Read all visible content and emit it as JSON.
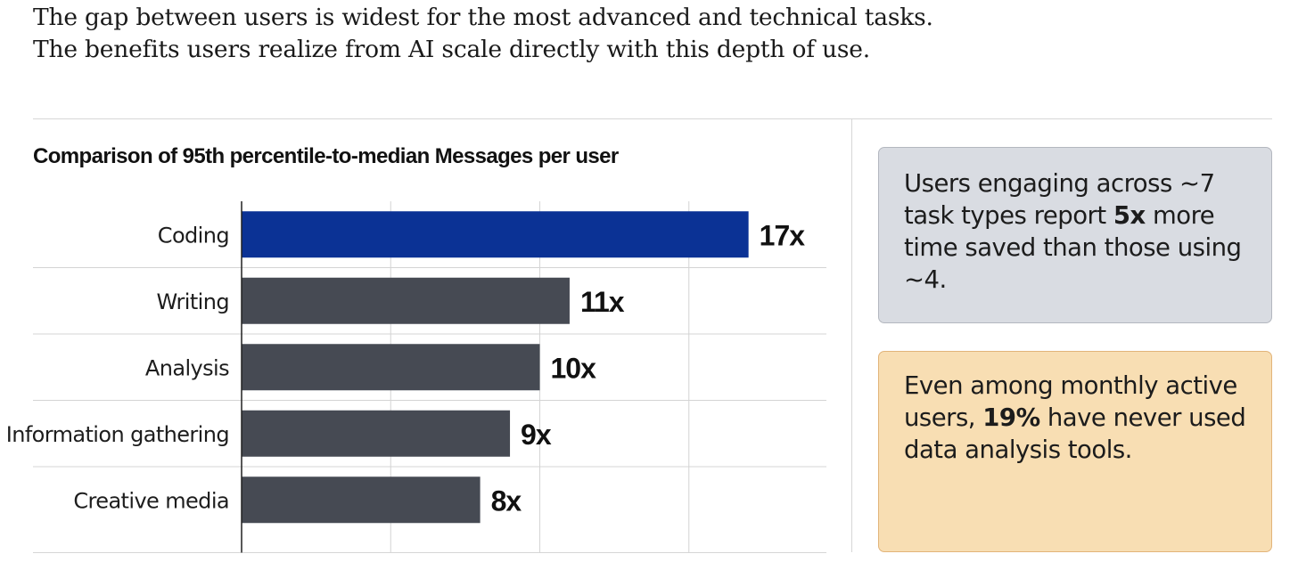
{
  "intro_text": "The gap between users is widest for the most advanced and technical tasks. The benefits users realize from AI scale directly with this depth of use.",
  "colors": {
    "highlight_bar": "#0b3295",
    "default_bar": "#464a53",
    "grid": "#d4d4d4",
    "axis": "#222222",
    "callout_gray_bg": "#d9dce2",
    "callout_orange_bg": "#f8deb3"
  },
  "chart_data": {
    "type": "bar",
    "orientation": "horizontal",
    "title": "Comparison of 95th percentile-to-median Messages per user",
    "categories": [
      "Coding",
      "Writing",
      "Analysis",
      "Information gathering",
      "Creative media"
    ],
    "values": [
      17,
      11,
      10,
      9,
      8
    ],
    "value_labels": [
      "17x",
      "11x",
      "10x",
      "9x",
      "8x"
    ],
    "highlighted_category": "Coding",
    "xlim": [
      0,
      20
    ],
    "grid": true,
    "legend": "none"
  },
  "callouts": [
    {
      "parts": [
        {
          "text": "Users engaging across ~7 task types report ",
          "bold": false
        },
        {
          "text": "5x",
          "bold": true
        },
        {
          "text": " more time saved than those using ~4.",
          "bold": false
        }
      ]
    },
    {
      "parts": [
        {
          "text": "Even among monthly active users, ",
          "bold": false
        },
        {
          "text": "19%",
          "bold": true
        },
        {
          "text": " have never used data analysis tools.",
          "bold": false
        }
      ]
    }
  ]
}
